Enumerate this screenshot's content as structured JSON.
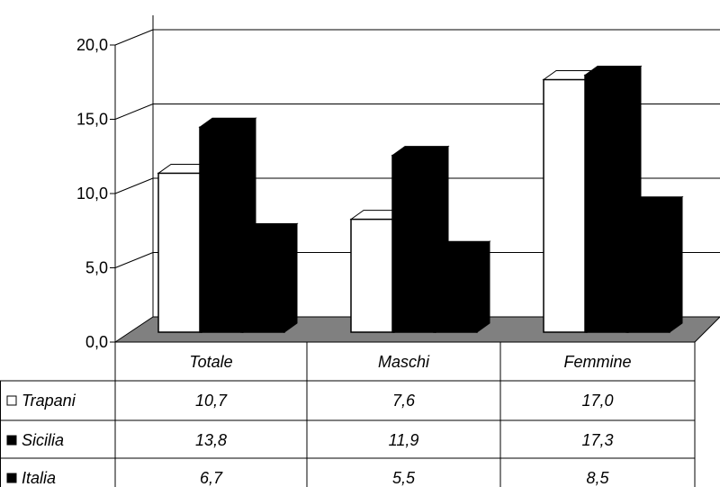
{
  "chart_data": {
    "type": "bar",
    "categories": [
      "Totale",
      "Maschi",
      "Femmine"
    ],
    "series": [
      {
        "name": "Trapani",
        "values": [
          10.7,
          7.6,
          17.0
        ],
        "display": [
          "10,7",
          "7,6",
          "17,0"
        ],
        "color": "#ffffff"
      },
      {
        "name": "Sicilia",
        "values": [
          13.8,
          11.9,
          17.3
        ],
        "display": [
          "13,8",
          "11,9",
          "17,3"
        ],
        "color": "#000000"
      },
      {
        "name": "Italia",
        "values": [
          6.7,
          5.5,
          8.5
        ],
        "display": [
          "6,7",
          "5,5",
          "8,5"
        ],
        "color": "#000000"
      }
    ],
    "yticks": [
      "0,0",
      "5,0",
      "10,0",
      "15,0",
      "20,0"
    ],
    "ylim": [
      0,
      20
    ],
    "grid": true,
    "legend": "data-table-left",
    "floor_color": "#808080"
  }
}
